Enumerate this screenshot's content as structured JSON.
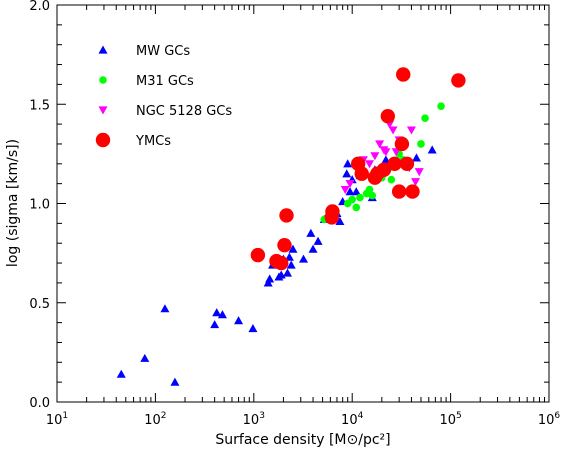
{
  "chart_data": {
    "type": "scatter",
    "title": "",
    "xlabel": "Surface density [M⊙/pc²]",
    "ylabel": "log (sigma [km/s])",
    "xscale": "log",
    "xlim": [
      10,
      1000000
    ],
    "ylim": [
      0.0,
      2.0
    ],
    "x_ticks": [
      {
        "base": "10",
        "exp": "1",
        "value": 10
      },
      {
        "base": "10",
        "exp": "2",
        "value": 100
      },
      {
        "base": "10",
        "exp": "3",
        "value": 1000
      },
      {
        "base": "10",
        "exp": "4",
        "value": 10000
      },
      {
        "base": "10",
        "exp": "5",
        "value": 100000
      },
      {
        "base": "10",
        "exp": "6",
        "value": 1000000
      }
    ],
    "y_ticks": [
      "0.0",
      "0.5",
      "1.0",
      "1.5",
      "2.0"
    ],
    "y_tick_values": [
      0.0,
      0.5,
      1.0,
      1.5,
      2.0
    ],
    "legend_position": "top-left",
    "grid": false,
    "series": [
      {
        "name": "MW GCs",
        "marker": "triangle-up",
        "color": "#0000ff",
        "points": [
          [
            45,
            0.14
          ],
          [
            78,
            0.22
          ],
          [
            125,
            0.47
          ],
          [
            158,
            0.1
          ],
          [
            400,
            0.39
          ],
          [
            420,
            0.45
          ],
          [
            480,
            0.44
          ],
          [
            700,
            0.41
          ],
          [
            980,
            0.37
          ],
          [
            1400,
            0.6
          ],
          [
            1450,
            0.62
          ],
          [
            1550,
            0.69
          ],
          [
            1700,
            0.7
          ],
          [
            1800,
            0.63
          ],
          [
            1900,
            0.64
          ],
          [
            2000,
            0.72
          ],
          [
            2200,
            0.65
          ],
          [
            2300,
            0.73
          ],
          [
            2400,
            0.69
          ],
          [
            2500,
            0.77
          ],
          [
            3200,
            0.72
          ],
          [
            3800,
            0.85
          ],
          [
            4000,
            0.77
          ],
          [
            4500,
            0.81
          ],
          [
            5200,
            0.92
          ],
          [
            6000,
            0.93
          ],
          [
            7000,
            0.95
          ],
          [
            7500,
            0.91
          ],
          [
            8000,
            1.01
          ],
          [
            8800,
            1.15
          ],
          [
            9000,
            1.2
          ],
          [
            9500,
            1.06
          ],
          [
            10000,
            1.12
          ],
          [
            11000,
            1.06
          ],
          [
            12000,
            1.14
          ],
          [
            16000,
            1.03
          ],
          [
            17000,
            1.17
          ],
          [
            22000,
            1.22
          ],
          [
            25000,
            1.2
          ],
          [
            45000,
            1.23
          ],
          [
            65000,
            1.27
          ]
        ]
      },
      {
        "name": "M31 GCs",
        "marker": "circle",
        "color": "#00ff00",
        "points": [
          [
            5200,
            0.92
          ],
          [
            9000,
            1.0
          ],
          [
            10000,
            1.02
          ],
          [
            11000,
            0.98
          ],
          [
            12000,
            1.03
          ],
          [
            14000,
            1.05
          ],
          [
            15000,
            1.07
          ],
          [
            16000,
            1.04
          ],
          [
            20000,
            1.13
          ],
          [
            23000,
            1.17
          ],
          [
            25000,
            1.12
          ],
          [
            27000,
            1.2
          ],
          [
            30000,
            1.25
          ],
          [
            33000,
            1.22
          ],
          [
            50000,
            1.3
          ],
          [
            55000,
            1.43
          ],
          [
            80000,
            1.49
          ],
          [
            120000,
            1.63
          ]
        ]
      },
      {
        "name": "NGC 5128 GCs",
        "marker": "triangle-down",
        "color": "#ff00ff",
        "points": [
          [
            8500,
            1.07
          ],
          [
            9500,
            1.1
          ],
          [
            12000,
            1.18
          ],
          [
            13000,
            1.22
          ],
          [
            15000,
            1.2
          ],
          [
            17000,
            1.24
          ],
          [
            19000,
            1.3
          ],
          [
            21000,
            1.27
          ],
          [
            22000,
            1.26
          ],
          [
            24000,
            1.4
          ],
          [
            26000,
            1.37
          ],
          [
            28000,
            1.26
          ],
          [
            30000,
            1.32
          ],
          [
            35000,
            1.2
          ],
          [
            38000,
            1.18
          ],
          [
            40000,
            1.37
          ],
          [
            44000,
            1.11
          ],
          [
            48000,
            1.16
          ]
        ]
      },
      {
        "name": "YMCs",
        "marker": "circle-large",
        "color": "#ff0000",
        "points": [
          [
            1100,
            0.74
          ],
          [
            1700,
            0.71
          ],
          [
            1900,
            0.7
          ],
          [
            2050,
            0.79
          ],
          [
            2150,
            0.94
          ],
          [
            6200,
            0.93
          ],
          [
            6300,
            0.96
          ],
          [
            11500,
            1.2
          ],
          [
            12500,
            1.15
          ],
          [
            17000,
            1.13
          ],
          [
            18000,
            1.15
          ],
          [
            21000,
            1.17
          ],
          [
            23000,
            1.44
          ],
          [
            27000,
            1.2
          ],
          [
            30000,
            1.06
          ],
          [
            32000,
            1.3
          ],
          [
            33000,
            1.65
          ],
          [
            36000,
            1.2
          ],
          [
            41000,
            1.06
          ],
          [
            120000,
            1.62
          ]
        ]
      }
    ]
  }
}
